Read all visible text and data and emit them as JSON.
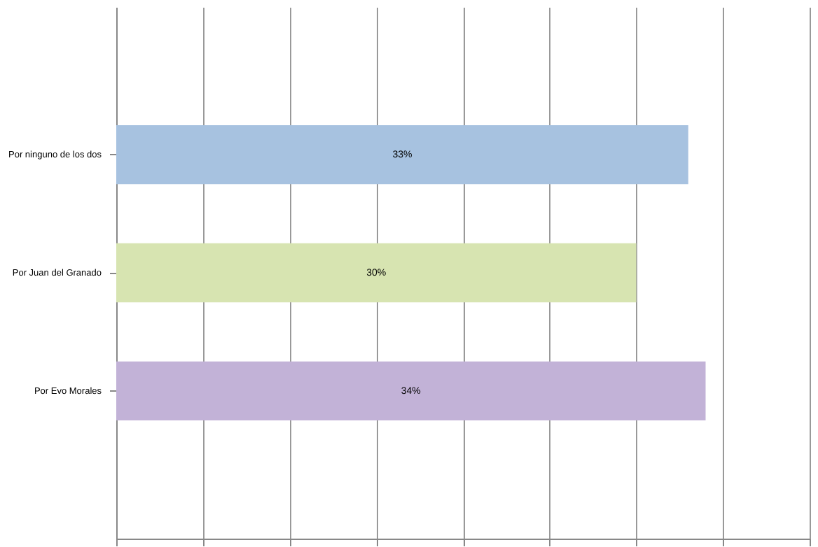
{
  "chart_data": {
    "type": "bar",
    "orientation": "horizontal",
    "categories": [
      "Por ninguno de los dos",
      "Por Juan del Granado",
      "Por Evo Morales"
    ],
    "values": [
      33,
      30,
      34
    ],
    "colors": [
      "#a7c2e0",
      "#d7e4b1",
      "#c2b2d7"
    ],
    "value_labels": [
      "33%",
      "30%",
      "34%"
    ],
    "xlim": [
      0,
      40
    ],
    "xticks": [
      {
        "value": 0,
        "label": null
      },
      {
        "value": 5,
        "label": null
      },
      {
        "value": 10,
        "label": null
      },
      {
        "value": 15,
        "label": null
      },
      {
        "value": 20,
        "label": null
      },
      {
        "value": 25,
        "label": null
      },
      {
        "value": 30,
        "label": null
      },
      {
        "value": 35,
        "label": null
      },
      {
        "value": 40,
        "label": null
      }
    ],
    "grid": "x",
    "tick_labels": "y"
  }
}
